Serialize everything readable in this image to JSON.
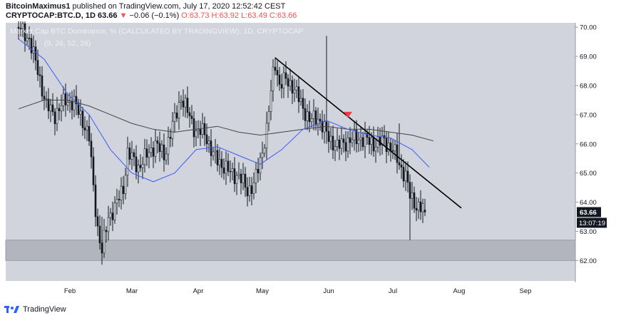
{
  "header": {
    "author": "BitcoinMaximus1",
    "published_text": "published on TradingView.com, July 17, 2020 12:52:42 CEST",
    "symbol": "CRYPTOCAP:BTC.D, 1D",
    "last": "63.66",
    "change_arrow": "▼",
    "change": "−0.06 (−0.1%)",
    "o_label": "O:",
    "o_value": "63.73",
    "h_label": "H:",
    "h_value": "63.92",
    "l_label": "L:",
    "l_value": "63.49",
    "c_label": "C:",
    "c_value": "63.66"
  },
  "footer": {
    "brand": "TradingView"
  },
  "chart_data": {
    "type": "candlestick",
    "title": "Market Cap BTC Dominance, % (CALCULATED BY TRADINGVIEW), 1D, CRYPTOCAP",
    "indicator": "(9, 26, 52, 26)",
    "x_ticks": [
      "Feb",
      "Mar",
      "Apr",
      "May",
      "Jun",
      "Jul",
      "Aug",
      "Sep"
    ],
    "y_ticks": [
      "62.00",
      "63.00",
      "64.00",
      "65.00",
      "66.00",
      "67.00",
      "68.00",
      "69.00",
      "70.00"
    ],
    "ylim": [
      61.3,
      70.15
    ],
    "price_label": "63.66",
    "countdown_label": "13:07:19",
    "support_zone": [
      62.0,
      62.7
    ],
    "trendline": {
      "from": [
        "2020-05-07",
        68.95
      ],
      "to": [
        "2020-08-02",
        63.8
      ]
    },
    "sell_signal": {
      "date": "2020-06-10",
      "value": 67.0
    },
    "anchors": [
      [
        "2020-01-08",
        70.0
      ],
      [
        "2020-01-13",
        69.6
      ],
      [
        "2020-01-17",
        68.5
      ],
      [
        "2020-01-21",
        67.3
      ],
      [
        "2020-01-25",
        67.0
      ],
      [
        "2020-01-30",
        67.5
      ],
      [
        "2020-02-03",
        67.4
      ],
      [
        "2020-02-07",
        66.8
      ],
      [
        "2020-02-10",
        66.2
      ],
      [
        "2020-02-12",
        64.5
      ],
      [
        "2020-02-14",
        63.1
      ],
      [
        "2020-02-16",
        62.3
      ],
      [
        "2020-02-19",
        63.5
      ],
      [
        "2020-02-22",
        63.8
      ],
      [
        "2020-02-26",
        64.5
      ],
      [
        "2020-02-28",
        65.7
      ],
      [
        "2020-03-04",
        65.2
      ],
      [
        "2020-03-08",
        65.6
      ],
      [
        "2020-03-12",
        66.0
      ],
      [
        "2020-03-16",
        65.6
      ],
      [
        "2020-03-20",
        66.6
      ],
      [
        "2020-03-24",
        67.6
      ],
      [
        "2020-03-27",
        67.1
      ],
      [
        "2020-03-31",
        66.4
      ],
      [
        "2020-04-04",
        66.4
      ],
      [
        "2020-04-08",
        65.6
      ],
      [
        "2020-04-12",
        65.3
      ],
      [
        "2020-04-16",
        65.0
      ],
      [
        "2020-04-20",
        64.9
      ],
      [
        "2020-04-24",
        64.4
      ],
      [
        "2020-04-27",
        64.6
      ],
      [
        "2020-04-30",
        65.4
      ],
      [
        "2020-05-03",
        66.5
      ],
      [
        "2020-05-06",
        68.4
      ],
      [
        "2020-05-07",
        68.8
      ],
      [
        "2020-05-09",
        68.0
      ],
      [
        "2020-05-12",
        68.2
      ],
      [
        "2020-05-15",
        68.0
      ],
      [
        "2020-05-19",
        67.4
      ],
      [
        "2020-05-23",
        66.8
      ],
      [
        "2020-05-27",
        66.9
      ],
      [
        "2020-06-01",
        66.2
      ],
      [
        "2020-06-05",
        65.9
      ],
      [
        "2020-06-10",
        66.1
      ],
      [
        "2020-06-16",
        66.2
      ],
      [
        "2020-06-22",
        66.0
      ],
      [
        "2020-06-27",
        66.1
      ],
      [
        "2020-07-01",
        65.8
      ],
      [
        "2020-07-04",
        65.3
      ],
      [
        "2020-07-07",
        64.9
      ],
      [
        "2020-07-09",
        64.2
      ],
      [
        "2020-07-12",
        63.9
      ],
      [
        "2020-07-14",
        63.8
      ],
      [
        "2020-07-16",
        63.7
      ]
    ],
    "wicks": [
      {
        "date": "2020-05-31",
        "low": 66.0,
        "high": 69.7
      },
      {
        "date": "2020-07-04",
        "low": 65.2,
        "high": 66.7
      },
      {
        "date": "2020-07-09",
        "low": 62.7,
        "high": 64.3
      },
      {
        "date": "2020-02-16",
        "low": 62.0,
        "high": 63.5
      }
    ],
    "ma_fast": [
      [
        "2020-01-08",
        69.6
      ],
      [
        "2020-01-20",
        68.9
      ],
      [
        "2020-01-31",
        67.7
      ],
      [
        "2020-02-10",
        67.0
      ],
      [
        "2020-02-20",
        65.8
      ],
      [
        "2020-03-01",
        65.0
      ],
      [
        "2020-03-11",
        64.7
      ],
      [
        "2020-03-21",
        65.0
      ],
      [
        "2020-03-31",
        65.8
      ],
      [
        "2020-04-10",
        65.9
      ],
      [
        "2020-04-20",
        65.6
      ],
      [
        "2020-04-30",
        65.3
      ],
      [
        "2020-05-10",
        65.8
      ],
      [
        "2020-05-20",
        66.5
      ],
      [
        "2020-05-31",
        66.8
      ],
      [
        "2020-06-10",
        66.5
      ],
      [
        "2020-06-20",
        66.3
      ],
      [
        "2020-06-30",
        66.2
      ],
      [
        "2020-07-10",
        65.8
      ],
      [
        "2020-07-18",
        65.2
      ]
    ],
    "ma_slow": [
      [
        "2020-01-08",
        67.2
      ],
      [
        "2020-01-20",
        67.5
      ],
      [
        "2020-01-31",
        67.5
      ],
      [
        "2020-02-10",
        67.3
      ],
      [
        "2020-02-20",
        67.0
      ],
      [
        "2020-03-01",
        66.7
      ],
      [
        "2020-03-11",
        66.5
      ],
      [
        "2020-03-21",
        66.4
      ],
      [
        "2020-03-31",
        66.5
      ],
      [
        "2020-04-10",
        66.6
      ],
      [
        "2020-04-20",
        66.4
      ],
      [
        "2020-04-30",
        66.3
      ],
      [
        "2020-05-10",
        66.4
      ],
      [
        "2020-05-20",
        66.5
      ],
      [
        "2020-05-31",
        66.6
      ],
      [
        "2020-06-10",
        66.5
      ],
      [
        "2020-06-20",
        66.5
      ],
      [
        "2020-06-30",
        66.4
      ],
      [
        "2020-07-10",
        66.3
      ],
      [
        "2020-07-20",
        66.1
      ]
    ]
  }
}
